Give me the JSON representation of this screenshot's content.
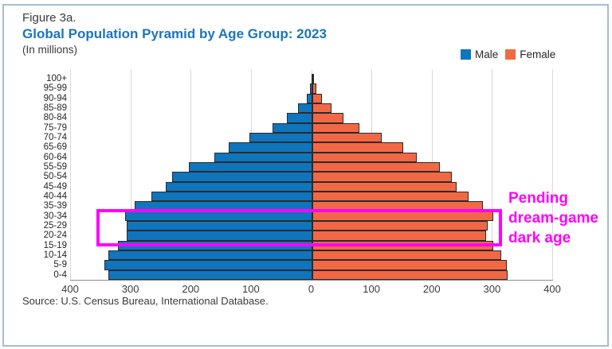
{
  "figure": {
    "label": "Figure 3a.",
    "title": "Global Population Pyramid by Age Group: 2023",
    "subtitle": "(In millions)",
    "source": "Source: U.S. Census Bureau, International Database."
  },
  "legend": {
    "male_label": "Male",
    "female_label": "Female"
  },
  "annotation": {
    "lines": [
      "Pending",
      "dream-game",
      "dark age"
    ]
  },
  "colors": {
    "male": "#0F75BC",
    "female": "#F26845",
    "title": "#1B75BB",
    "annotation": "#FF00FF",
    "bar_border": "#2B2B2B",
    "grid": "#D8D8D8",
    "frame": "#A3BDD6",
    "text": "#3A3A3A"
  },
  "chart_data": {
    "type": "bar",
    "subtype": "population-pyramid",
    "title": "Global Population Pyramid by Age Group: 2023",
    "unit": "millions",
    "xlim": [
      -400,
      400
    ],
    "x_tick_labels": [
      "400",
      "300",
      "200",
      "100",
      "0",
      "100",
      "200",
      "300",
      "400"
    ],
    "grid": true,
    "legend_position": "top-right",
    "age_groups": [
      "100+",
      "95-99",
      "90-94",
      "85-89",
      "80-84",
      "75-79",
      "70-74",
      "65-69",
      "60-64",
      "55-59",
      "50-54",
      "45-49",
      "40-44",
      "35-39",
      "30-34",
      "25-29",
      "20-24",
      "15-19",
      "10-14",
      "5-9",
      "0-4"
    ],
    "series": [
      {
        "name": "Male",
        "side": "left",
        "values": [
          1,
          4,
          9,
          24,
          42,
          66,
          105,
          140,
          164,
          206,
          234,
          244,
          268,
          296,
          312,
          309,
          310,
          324,
          340,
          347,
          340
        ]
      },
      {
        "name": "Female",
        "side": "right",
        "values": [
          2,
          6,
          16,
          32,
          52,
          79,
          115,
          151,
          174,
          212,
          232,
          240,
          260,
          285,
          302,
          293,
          290,
          301,
          315,
          324,
          325
        ]
      }
    ],
    "highlighted_age_groups": [
      "30-34",
      "25-29",
      "20-24",
      "15-19"
    ]
  }
}
